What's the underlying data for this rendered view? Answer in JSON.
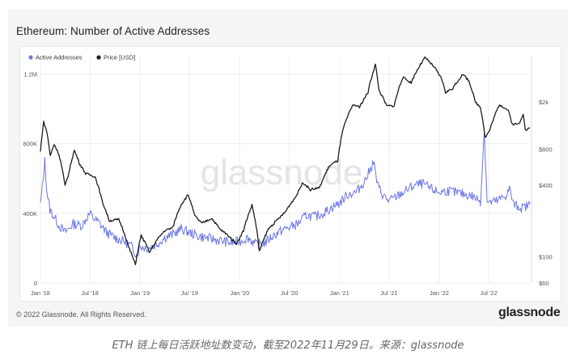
{
  "title": "Ethereum: Number of Active Addresses",
  "footer": {
    "copyright": "© 2022 Glassnode. All Rights Reserved.",
    "logo": "glassnode"
  },
  "caption": "ETH 链上每日活跃地址数变动，截至2022年11月29日。来源：glassnode",
  "watermark": "glassnode",
  "colors": {
    "active_addresses": "#6b75e6",
    "price": "#1c1c1c",
    "grid": "#eceef2",
    "panel_bg": "#f4f5f7"
  },
  "chart_data": {
    "type": "line",
    "legend_position": "top-left",
    "grid": true,
    "x_ticks": [
      "Jan '18",
      "Jul '18",
      "Jan '19",
      "Jul '19",
      "Jan '20",
      "Jul '20",
      "Jan '21",
      "Jul '21",
      "Jan '22",
      "Jul '22"
    ],
    "x_range": [
      "2018-01-01",
      "2022-11-29"
    ],
    "y_left": {
      "ticks": [
        "0",
        "400K",
        "800K",
        "1.2M"
      ],
      "tick_values": [
        0,
        400000,
        800000,
        1200000
      ],
      "range": [
        0,
        1300000
      ]
    },
    "y_right": {
      "scale": "log",
      "ticks": [
        "$60",
        "$100",
        "$400",
        "$800",
        "$2k"
      ],
      "tick_values": [
        60,
        100,
        400,
        800,
        2000
      ],
      "range": [
        60,
        4800
      ]
    },
    "series": [
      {
        "name": "Active Addresses",
        "axis": "left",
        "points": [
          [
            "2018-01-01",
            450000
          ],
          [
            "2018-01-10",
            580000
          ],
          [
            "2018-01-17",
            700000
          ],
          [
            "2018-01-25",
            520000
          ],
          [
            "2018-02-05",
            420000
          ],
          [
            "2018-02-20",
            380000
          ],
          [
            "2018-03-10",
            330000
          ],
          [
            "2018-04-01",
            290000
          ],
          [
            "2018-05-01",
            340000
          ],
          [
            "2018-06-01",
            330000
          ],
          [
            "2018-07-01",
            400000
          ],
          [
            "2018-07-15",
            370000
          ],
          [
            "2018-08-01",
            350000
          ],
          [
            "2018-09-01",
            290000
          ],
          [
            "2018-10-01",
            260000
          ],
          [
            "2018-11-01",
            240000
          ],
          [
            "2018-12-01",
            210000
          ],
          [
            "2018-12-20",
            160000
          ],
          [
            "2019-01-01",
            210000
          ],
          [
            "2019-02-01",
            200000
          ],
          [
            "2019-03-01",
            220000
          ],
          [
            "2019-04-01",
            260000
          ],
          [
            "2019-05-01",
            280000
          ],
          [
            "2019-06-01",
            310000
          ],
          [
            "2019-07-01",
            290000
          ],
          [
            "2019-08-01",
            270000
          ],
          [
            "2019-09-01",
            260000
          ],
          [
            "2019-10-01",
            250000
          ],
          [
            "2019-11-01",
            240000
          ],
          [
            "2019-12-01",
            230000
          ],
          [
            "2020-01-01",
            240000
          ],
          [
            "2020-02-01",
            260000
          ],
          [
            "2020-03-01",
            220000
          ],
          [
            "2020-04-01",
            230000
          ],
          [
            "2020-05-01",
            270000
          ],
          [
            "2020-06-01",
            300000
          ],
          [
            "2020-07-01",
            320000
          ],
          [
            "2020-08-01",
            340000
          ],
          [
            "2020-09-01",
            390000
          ],
          [
            "2020-10-01",
            380000
          ],
          [
            "2020-11-01",
            400000
          ],
          [
            "2020-12-01",
            430000
          ],
          [
            "2021-01-01",
            460000
          ],
          [
            "2021-02-01",
            510000
          ],
          [
            "2021-03-01",
            520000
          ],
          [
            "2021-04-01",
            580000
          ],
          [
            "2021-04-20",
            640000
          ],
          [
            "2021-05-05",
            700000
          ],
          [
            "2021-05-20",
            560000
          ],
          [
            "2021-06-10",
            500000
          ],
          [
            "2021-07-01",
            470000
          ],
          [
            "2021-08-01",
            500000
          ],
          [
            "2021-09-01",
            530000
          ],
          [
            "2021-10-01",
            560000
          ],
          [
            "2021-11-01",
            570000
          ],
          [
            "2021-12-01",
            540000
          ],
          [
            "2022-01-01",
            520000
          ],
          [
            "2022-02-01",
            530000
          ],
          [
            "2022-03-01",
            520000
          ],
          [
            "2022-04-01",
            510000
          ],
          [
            "2022-05-01",
            500000
          ],
          [
            "2022-06-01",
            470000
          ],
          [
            "2022-06-15",
            880000
          ],
          [
            "2022-06-25",
            480000
          ],
          [
            "2022-07-01",
            460000
          ],
          [
            "2022-08-01",
            470000
          ],
          [
            "2022-09-01",
            500000
          ],
          [
            "2022-09-15",
            540000
          ],
          [
            "2022-10-01",
            450000
          ],
          [
            "2022-11-01",
            430000
          ],
          [
            "2022-11-29",
            450000
          ]
        ]
      },
      {
        "name": "Price [USD]",
        "axis": "right",
        "points": [
          [
            "2018-01-01",
            760
          ],
          [
            "2018-01-13",
            1350
          ],
          [
            "2018-01-25",
            1100
          ],
          [
            "2018-02-06",
            700
          ],
          [
            "2018-02-20",
            880
          ],
          [
            "2018-03-10",
            720
          ],
          [
            "2018-04-01",
            390
          ],
          [
            "2018-04-15",
            500
          ],
          [
            "2018-05-05",
            780
          ],
          [
            "2018-05-25",
            600
          ],
          [
            "2018-06-15",
            500
          ],
          [
            "2018-07-20",
            470
          ],
          [
            "2018-08-15",
            290
          ],
          [
            "2018-09-10",
            200
          ],
          [
            "2018-10-15",
            205
          ],
          [
            "2018-11-20",
            120
          ],
          [
            "2018-12-15",
            85
          ],
          [
            "2019-01-05",
            150
          ],
          [
            "2019-02-05",
            108
          ],
          [
            "2019-03-01",
            135
          ],
          [
            "2019-04-01",
            165
          ],
          [
            "2019-05-01",
            175
          ],
          [
            "2019-05-30",
            270
          ],
          [
            "2019-06-26",
            330
          ],
          [
            "2019-07-20",
            220
          ],
          [
            "2019-08-15",
            190
          ],
          [
            "2019-09-20",
            210
          ],
          [
            "2019-10-20",
            170
          ],
          [
            "2019-11-20",
            150
          ],
          [
            "2019-12-20",
            128
          ],
          [
            "2020-01-15",
            165
          ],
          [
            "2020-02-15",
            270
          ],
          [
            "2020-03-13",
            110
          ],
          [
            "2020-04-15",
            170
          ],
          [
            "2020-05-15",
            200
          ],
          [
            "2020-06-15",
            235
          ],
          [
            "2020-07-25",
            320
          ],
          [
            "2020-08-20",
            420
          ],
          [
            "2020-09-15",
            365
          ],
          [
            "2020-10-20",
            380
          ],
          [
            "2020-11-25",
            580
          ],
          [
            "2020-12-25",
            640
          ],
          [
            "2021-01-15",
            1200
          ],
          [
            "2021-02-20",
            1900
          ],
          [
            "2021-03-15",
            1800
          ],
          [
            "2021-04-15",
            2400
          ],
          [
            "2021-05-12",
            4100
          ],
          [
            "2021-05-25",
            2500
          ],
          [
            "2021-06-22",
            1850
          ],
          [
            "2021-07-20",
            1850
          ],
          [
            "2021-08-20",
            3200
          ],
          [
            "2021-09-20",
            2900
          ],
          [
            "2021-10-15",
            3800
          ],
          [
            "2021-11-10",
            4700
          ],
          [
            "2021-12-10",
            4000
          ],
          [
            "2022-01-10",
            3100
          ],
          [
            "2022-01-24",
            2400
          ],
          [
            "2022-02-20",
            2600
          ],
          [
            "2022-03-28",
            3400
          ],
          [
            "2022-04-20",
            3000
          ],
          [
            "2022-05-12",
            2000
          ],
          [
            "2022-06-01",
            1800
          ],
          [
            "2022-06-18",
            1000
          ],
          [
            "2022-07-05",
            1150
          ],
          [
            "2022-08-10",
            1900
          ],
          [
            "2022-09-10",
            1700
          ],
          [
            "2022-09-25",
            1300
          ],
          [
            "2022-10-20",
            1300
          ],
          [
            "2022-11-05",
            1600
          ],
          [
            "2022-11-12",
            1150
          ],
          [
            "2022-11-29",
            1200
          ]
        ]
      }
    ]
  }
}
